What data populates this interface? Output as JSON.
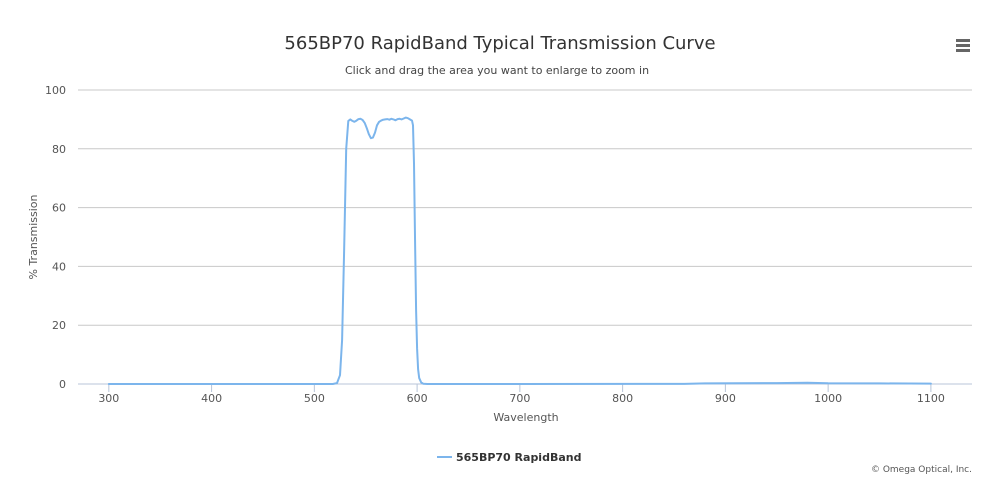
{
  "chart_data": {
    "type": "line",
    "title": "565BP70 RapidBand Typical Transmission Curve",
    "subtitle": "Click and drag the area you want to enlarge to zoom in",
    "xlabel": "Wavelength",
    "ylabel": "% Transmission",
    "xlim": [
      270,
      1140
    ],
    "ylim": [
      0,
      100
    ],
    "x_ticks": [
      300,
      400,
      500,
      600,
      700,
      800,
      900,
      1000,
      1100
    ],
    "y_ticks": [
      0,
      20,
      40,
      60,
      80,
      100
    ],
    "grid": true,
    "legend_position": "bottom-center",
    "series": [
      {
        "name": "565BP70 RapidBand",
        "color": "#7cb5ec",
        "points": [
          [
            300,
            0
          ],
          [
            500,
            0
          ],
          [
            518,
            0
          ],
          [
            522,
            0.3
          ],
          [
            525,
            3
          ],
          [
            527,
            15
          ],
          [
            529,
            45
          ],
          [
            531,
            80
          ],
          [
            533,
            89.5
          ],
          [
            535,
            90
          ],
          [
            537,
            89.5
          ],
          [
            539,
            89.2
          ],
          [
            541,
            89.6
          ],
          [
            543,
            90.1
          ],
          [
            545,
            90.2
          ],
          [
            547,
            89.8
          ],
          [
            549,
            88.8
          ],
          [
            551,
            87
          ],
          [
            553,
            85
          ],
          [
            555,
            83.6
          ],
          [
            557,
            83.8
          ],
          [
            559,
            85.5
          ],
          [
            561,
            88
          ],
          [
            563,
            89.2
          ],
          [
            565,
            89.6
          ],
          [
            567,
            89.9
          ],
          [
            569,
            90.0
          ],
          [
            571,
            90.1
          ],
          [
            573,
            89.9
          ],
          [
            575,
            90.2
          ],
          [
            577,
            90.0
          ],
          [
            579,
            89.7
          ],
          [
            581,
            90.1
          ],
          [
            583,
            90.2
          ],
          [
            585,
            90.0
          ],
          [
            587,
            90.3
          ],
          [
            589,
            90.6
          ],
          [
            591,
            90.4
          ],
          [
            593,
            90.0
          ],
          [
            595,
            89.6
          ],
          [
            596,
            88
          ],
          [
            597,
            75
          ],
          [
            598,
            50
          ],
          [
            599,
            25
          ],
          [
            600,
            12
          ],
          [
            601,
            5
          ],
          [
            602,
            2
          ],
          [
            604,
            0.5
          ],
          [
            606,
            0.1
          ],
          [
            610,
            0
          ],
          [
            700,
            0
          ],
          [
            860,
            0.05
          ],
          [
            880,
            0.2
          ],
          [
            950,
            0.3
          ],
          [
            980,
            0.4
          ],
          [
            1000,
            0.25
          ],
          [
            1050,
            0.2
          ],
          [
            1100,
            0.15
          ]
        ]
      }
    ]
  },
  "legend": {
    "label": "565BP70 RapidBand",
    "color": "#7cb5ec"
  },
  "credits": "© Omega Optical, Inc.",
  "menu": {
    "icon": "hamburger-menu-icon"
  }
}
